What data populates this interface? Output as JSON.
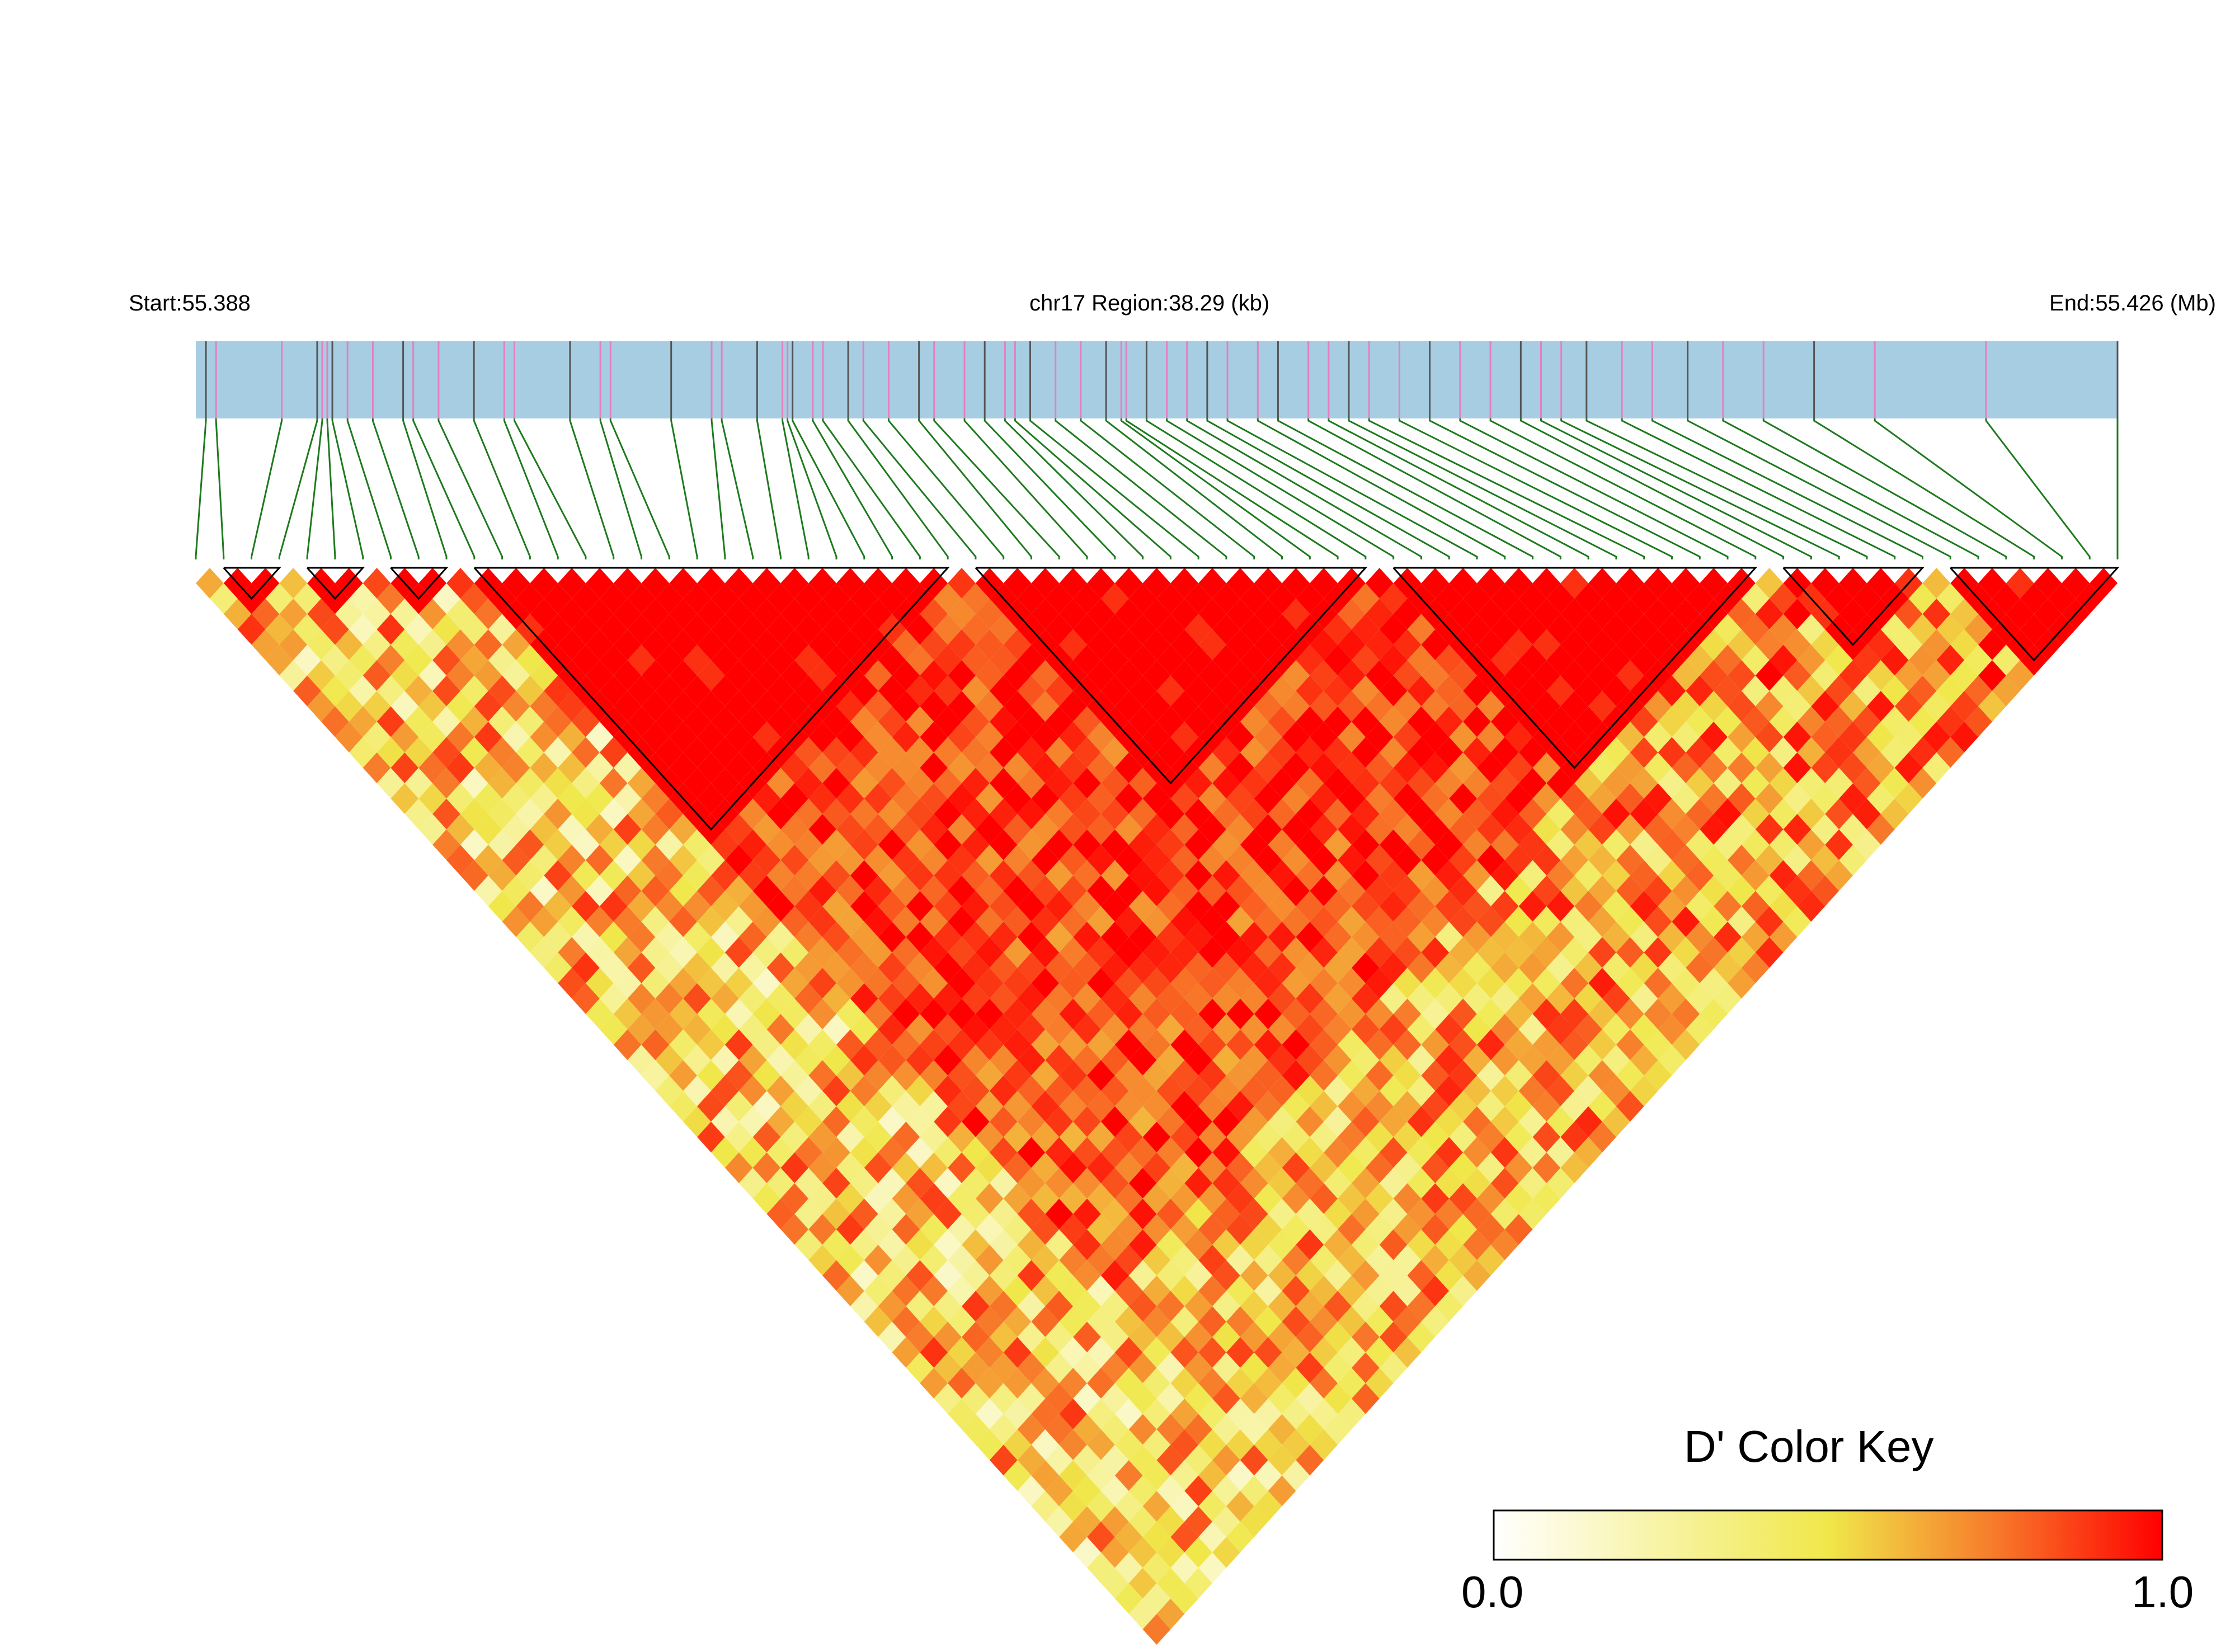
{
  "header": {
    "start": "Start:55.388",
    "region": "chr17 Region:38.29 (kb)",
    "end": "End:55.426 (Mb)"
  },
  "colors": {
    "gene_band": "#a7cde2",
    "snp_line_dark": "#555555",
    "snp_line_pink": "#e57fbf",
    "connector": "#1e7a1e",
    "block_outline": "#000000",
    "ld_low": "#ffffff",
    "ld_mid": "#f0e84a",
    "ld_high": "#ff0000"
  },
  "chart_data": {
    "type": "heatmap",
    "title": "",
    "measure": "D'",
    "region": {
      "chromosome": "chr17",
      "start_mb": 55.388,
      "end_mb": 55.426,
      "length_kb": 38.29
    },
    "snp_count": 70,
    "snp_positions_mb": [
      55.3882,
      55.3884,
      55.3897,
      55.3904,
      55.3905,
      55.3906,
      55.3907,
      55.391,
      55.3915,
      55.3921,
      55.3923,
      55.3928,
      55.3935,
      55.3941,
      55.3943,
      55.3954,
      55.396,
      55.3962,
      55.3974,
      55.3982,
      55.3984,
      55.3991,
      55.3996,
      55.3997,
      55.3998,
      55.4002,
      55.4004,
      55.4009,
      55.4012,
      55.4017,
      55.4023,
      55.4026,
      55.4032,
      55.4036,
      55.404,
      55.4042,
      55.4045,
      55.405,
      55.4055,
      55.406,
      55.4063,
      55.4064,
      55.4068,
      55.4072,
      55.4076,
      55.408,
      55.4084,
      55.409,
      55.4094,
      55.41,
      55.4104,
      55.4108,
      55.4112,
      55.4118,
      55.4124,
      55.413,
      55.4136,
      55.4142,
      55.4146,
      55.415,
      55.4155,
      55.4162,
      55.4168,
      55.4175,
      55.4182,
      55.419,
      55.42,
      55.4212,
      55.4234,
      55.426
    ],
    "ld_blocks": [
      [
        1,
        3
      ],
      [
        4,
        6
      ],
      [
        7,
        9
      ],
      [
        10,
        27
      ],
      [
        28,
        42
      ],
      [
        43,
        56
      ],
      [
        57,
        62
      ],
      [
        63,
        69
      ]
    ],
    "color_key": {
      "title": "D' Color Key",
      "min": "0.0",
      "max": "1.0"
    }
  }
}
